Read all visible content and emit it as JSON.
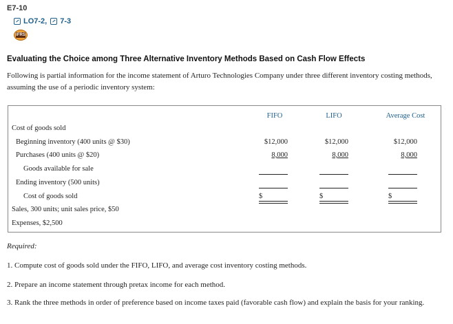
{
  "header": {
    "problem_id": "E7-10",
    "learning_objectives": [
      "LO7-2,",
      "7-3"
    ],
    "badge_icon": "ifrs-badge-icon",
    "badge_text": "IFRS"
  },
  "section_title": "Evaluating the Choice among Three Alternative Inventory Methods Based on Cash Flow Effects",
  "intro": "Following is partial information for the income statement of Arturo Technologies Company under three different inventory costing methods, assuming the use of a periodic inventory system:",
  "table": {
    "columns": [
      "FIFO",
      "LIFO",
      "Average Cost"
    ],
    "rows": [
      {
        "label": "Cost of goods sold"
      },
      {
        "label": "Beginning inventory (400 units @ $30)",
        "values": [
          "$12,000",
          "$12,000",
          "$12,000"
        ]
      },
      {
        "label": "Purchases (400 units @ $20)",
        "values": [
          "8,000",
          "8,000",
          "8,000"
        ]
      },
      {
        "label": "Goods available for sale"
      },
      {
        "label": "Ending inventory (500 units)"
      },
      {
        "label": "Cost of goods sold",
        "values": [
          "$",
          "$",
          "$"
        ]
      },
      {
        "label": "Sales, 300 units; unit sales price, $50"
      },
      {
        "label": "Expenses, $2,500"
      }
    ]
  },
  "required": {
    "heading": "Required:",
    "items": [
      "1. Compute cost of goods sold under the FIFO, LIFO, and average cost inventory costing methods.",
      "2. Prepare an income statement through pretax income for each method.",
      "3. Rank the three methods in order of preference based on income taxes paid (favorable cash flow) and explain the basis for your ranking."
    ]
  }
}
